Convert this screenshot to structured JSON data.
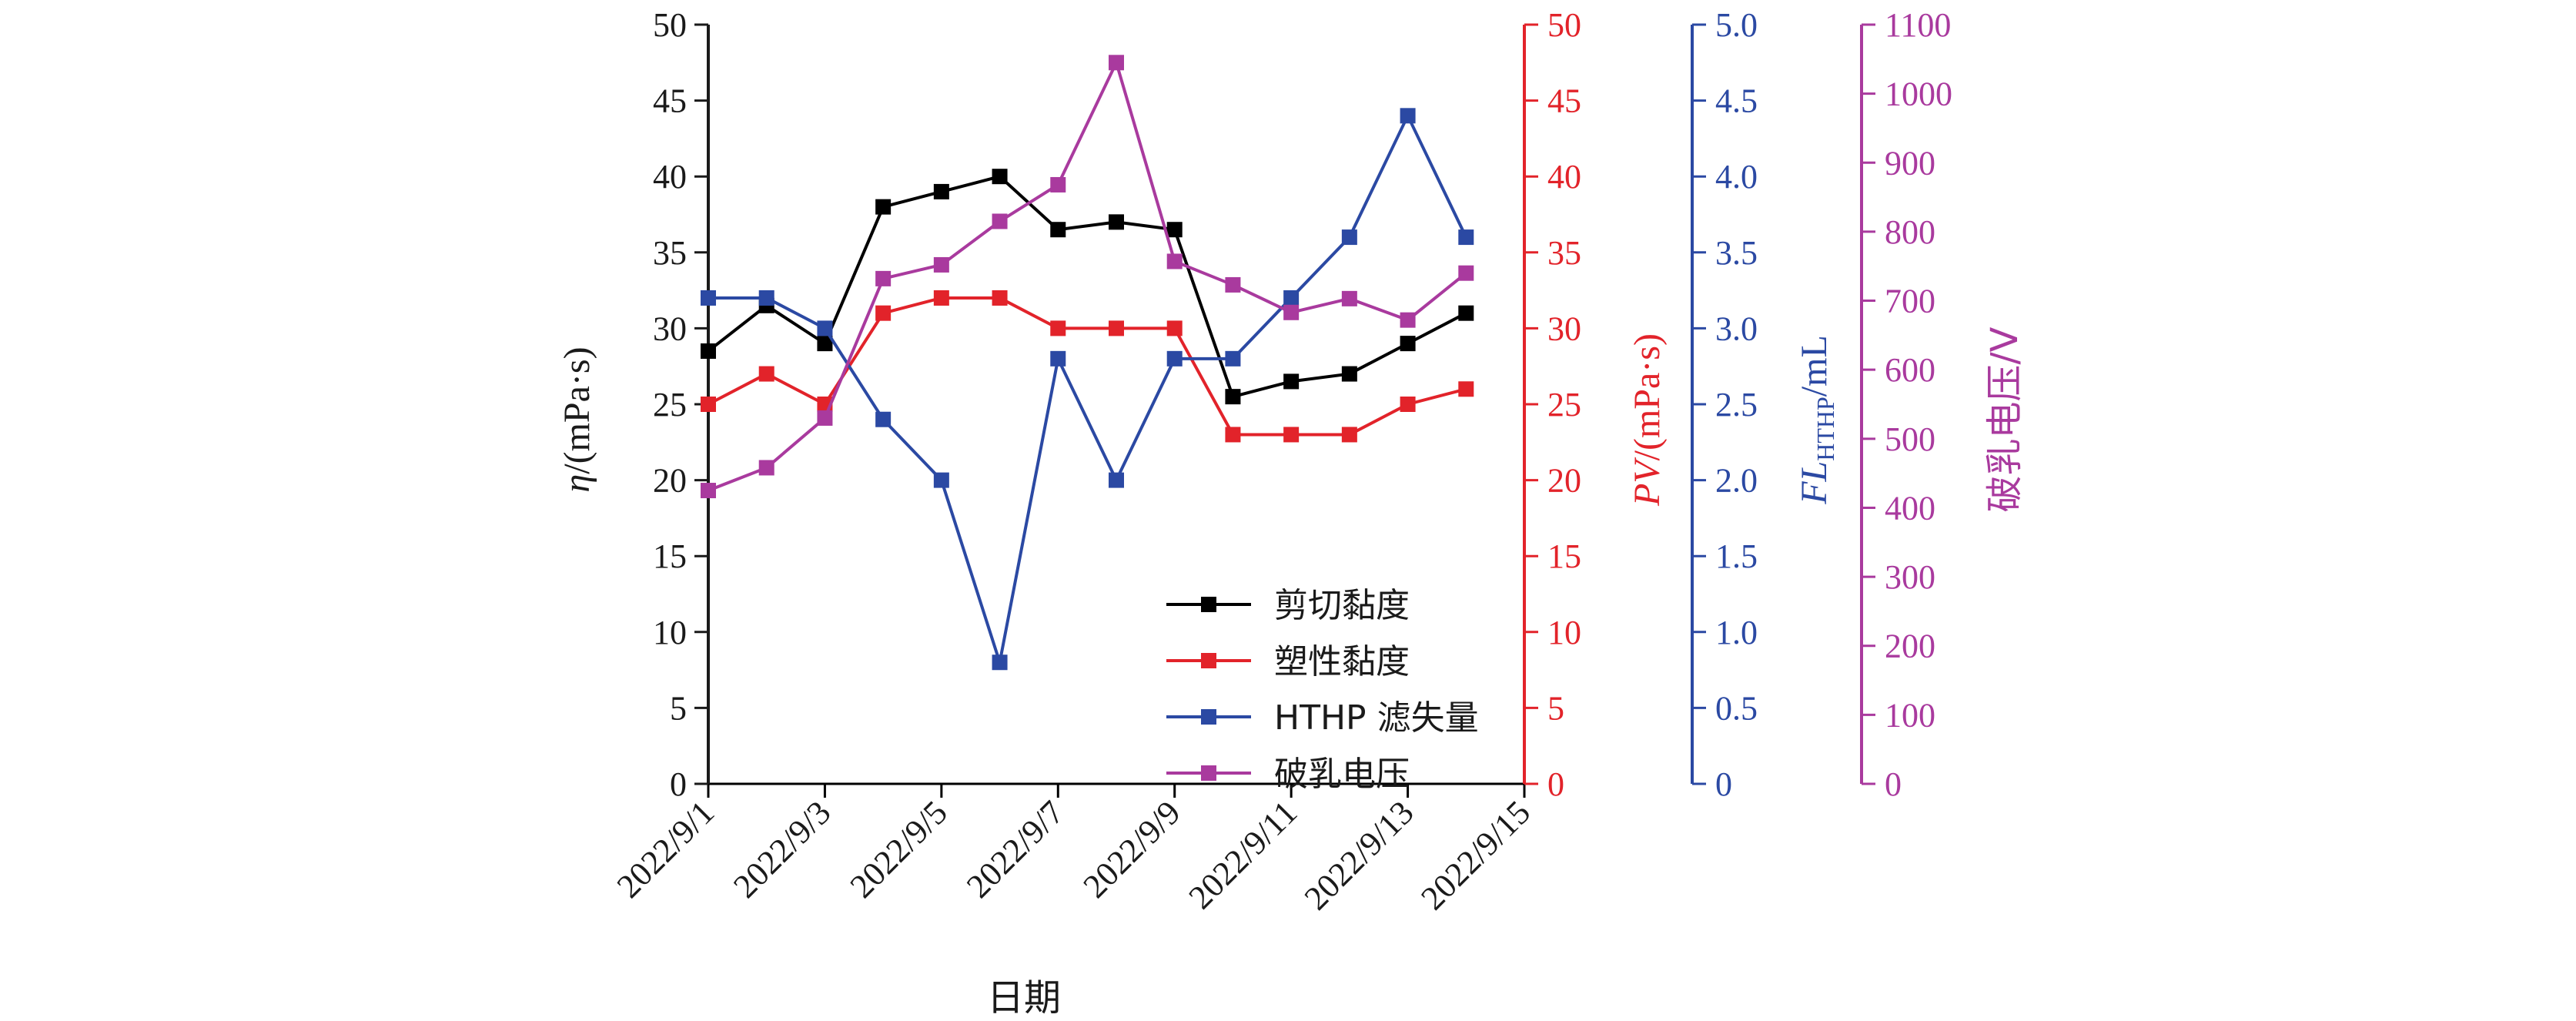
{
  "chart_data": {
    "type": "line",
    "x_dates": [
      "2022/9/1",
      "2022/9/2",
      "2022/9/3",
      "2022/9/4",
      "2022/9/5",
      "2022/9/6",
      "2022/9/7",
      "2022/9/8",
      "2022/9/9",
      "2022/9/10",
      "2022/9/11",
      "2022/9/12",
      "2022/9/13",
      "2022/9/14"
    ],
    "x_tick_labels": [
      "2022/9/1",
      "2022/9/3",
      "2022/9/5",
      "2022/9/7",
      "2022/9/9",
      "2022/9/11",
      "2022/9/13",
      "2022/9/15"
    ],
    "xlabel": "日期",
    "xlim": [
      "2022/9/1",
      "2022/9/15"
    ],
    "grid": false,
    "legend_position": "lower-center",
    "axes": [
      {
        "id": "eta",
        "side": "left",
        "label_italic": "η",
        "label_rest": "/(mPa·s)",
        "color": "#1a1a1a",
        "ylim": [
          0,
          50
        ],
        "ticks": [
          0,
          5,
          10,
          15,
          20,
          25,
          30,
          35,
          40,
          45,
          50
        ],
        "tick_labels": [
          "0",
          "5",
          "10",
          "15",
          "20",
          "25",
          "30",
          "35",
          "40",
          "45",
          "50"
        ]
      },
      {
        "id": "pv",
        "side": "right",
        "label_italic": "PV",
        "label_rest": "/(mPa·s)",
        "color": "#e2232a",
        "ylim": [
          0,
          50
        ],
        "ticks": [
          0,
          5,
          10,
          15,
          20,
          25,
          30,
          35,
          40,
          45,
          50
        ],
        "tick_labels": [
          "0",
          "5",
          "10",
          "15",
          "20",
          "25",
          "30",
          "35",
          "40",
          "45",
          "50"
        ]
      },
      {
        "id": "fl",
        "side": "right",
        "label_italic": "FL",
        "label_sub": "HTHP",
        "label_rest": "/mL",
        "color": "#2b49a3",
        "ylim": [
          0,
          5
        ],
        "ticks": [
          0,
          0.5,
          1,
          1.5,
          2,
          2.5,
          3,
          3.5,
          4,
          4.5,
          5
        ],
        "tick_labels": [
          "0",
          "0.5",
          "1.0",
          "1.5",
          "2.0",
          "2.5",
          "3.0",
          "3.5",
          "4.0",
          "4.5",
          "5.0"
        ]
      },
      {
        "id": "es",
        "side": "right",
        "label_rest": "破乳电压/V",
        "color": "#a93a9e",
        "ylim": [
          0,
          1100
        ],
        "ticks": [
          0,
          100,
          200,
          300,
          400,
          500,
          600,
          700,
          800,
          900,
          1000,
          1100
        ],
        "tick_labels": [
          "0",
          "100",
          "200",
          "300",
          "400",
          "500",
          "600",
          "700",
          "800",
          "900",
          "1000",
          "1100"
        ]
      }
    ],
    "series": [
      {
        "name": "剪切黏度",
        "axis": "eta",
        "color": "#000000",
        "values": [
          28.5,
          31.5,
          29,
          38,
          39,
          40,
          36.5,
          37,
          36.5,
          25.5,
          26.5,
          27,
          29,
          31
        ]
      },
      {
        "name": "塑性黏度",
        "axis": "pv",
        "color": "#e2232a",
        "values": [
          25,
          27,
          25,
          31,
          32,
          32,
          30,
          30,
          30,
          23,
          23,
          23,
          25,
          26
        ]
      },
      {
        "name": "HTHP 滤失量",
        "axis": "fl",
        "color": "#2b49a3",
        "values": [
          3.2,
          3.2,
          3.0,
          2.4,
          2.0,
          0.8,
          2.8,
          2.0,
          2.8,
          2.8,
          3.2,
          3.6,
          4.4,
          3.6
        ]
      },
      {
        "name": "破乳电压",
        "axis": "es",
        "color": "#a93a9e",
        "values": [
          425,
          458,
          530,
          732,
          752,
          815,
          868,
          1045,
          757,
          723,
          683,
          703,
          672,
          740
        ]
      }
    ]
  }
}
